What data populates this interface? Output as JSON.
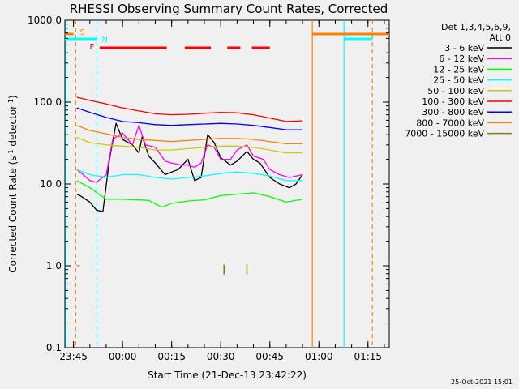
{
  "chart_data": {
    "type": "line",
    "title": "RHESSI Observing Summary Count Rates, Corrected",
    "xlabel": "Start Time (21-Dec-13 23:42:22)",
    "ylabel": "Corrected Count Rate (s⁻¹ detector⁻¹)",
    "ylabel_main": "Corrected Count Rate (s",
    "ylabel_sup1": "-1",
    "ylabel_mid": " detector",
    "ylabel_sup2": "-1",
    "ylabel_end": ")",
    "y_scale": "log",
    "ylim": [
      0.1,
      1000
    ],
    "xlim": [
      "23:42:22",
      "01:21:30"
    ],
    "x_ticks": [
      "23:45",
      "00:00",
      "00:15",
      "00:30",
      "00:45",
      "01:00",
      "01:15"
    ],
    "y_ticks": [
      "0.1",
      "1.0",
      "10.0",
      "100.0",
      "1000.0"
    ],
    "legend_header": [
      "Det 1,3,4,5,6,9,",
      "Att 0"
    ],
    "legend_placement": "right",
    "series": [
      {
        "name": "3 - 6 keV",
        "color": "#000000",
        "x": [
          "23:46",
          "23:47",
          "23:50",
          "23:52",
          "23:54",
          "23:56",
          "23:58",
          "00:00",
          "00:03",
          "00:05",
          "00:06",
          "00:08",
          "00:10",
          "00:13",
          "00:15",
          "00:17",
          "00:20",
          "00:22",
          "00:24",
          "00:26",
          "00:28",
          "00:30",
          "00:33",
          "00:35",
          "00:38",
          "00:40",
          "00:42",
          "00:45",
          "00:48",
          "00:51",
          "00:53",
          "00:55"
        ],
        "y": [
          7.5,
          7.2,
          6.0,
          4.8,
          4.6,
          20,
          55,
          35,
          30,
          24,
          38,
          22,
          18,
          13,
          14,
          15,
          20,
          11,
          12,
          40,
          32,
          21,
          17,
          19,
          25,
          20,
          18,
          12,
          10,
          9,
          10,
          13
        ]
      },
      {
        "name": "6 - 12 keV",
        "color": "#ff00ff",
        "x": [
          "23:46",
          "23:48",
          "23:50",
          "23:52",
          "23:55",
          "23:57",
          "00:00",
          "00:03",
          "00:05",
          "00:07",
          "00:10",
          "00:13",
          "00:15",
          "00:18",
          "00:20",
          "00:22",
          "00:24",
          "00:26",
          "00:28",
          "00:30",
          "00:33",
          "00:35",
          "00:38",
          "00:40",
          "00:43",
          "00:45",
          "00:48",
          "00:51",
          "00:55"
        ],
        "y": [
          15,
          13,
          11,
          10.5,
          13,
          35,
          42,
          30,
          52,
          30,
          28,
          19,
          18,
          17,
          17,
          16,
          18,
          30,
          28,
          20,
          20,
          26,
          30,
          22,
          20,
          15,
          13,
          12,
          13
        ]
      },
      {
        "name": "12 - 25 keV",
        "color": "#00ff00",
        "x": [
          "23:46",
          "23:50",
          "23:55",
          "00:00",
          "00:05",
          "00:08",
          "00:12",
          "00:15",
          "00:20",
          "00:25",
          "00:30",
          "00:35",
          "00:40",
          "00:45",
          "00:50",
          "00:55"
        ],
        "y": [
          11,
          9,
          6.5,
          6.5,
          6.4,
          6.3,
          5.2,
          5.8,
          6.2,
          6.4,
          7.2,
          7.5,
          7.8,
          7.0,
          6.0,
          6.5
        ]
      },
      {
        "name": "25 - 50 keV",
        "color": "#00ffff",
        "x": [
          "23:46",
          "23:50",
          "23:55",
          "00:00",
          "00:05",
          "00:10",
          "00:15",
          "00:20",
          "00:25",
          "00:30",
          "00:35",
          "00:40",
          "00:45",
          "00:50",
          "00:55"
        ],
        "y": [
          15,
          13,
          12,
          13,
          13,
          12,
          11.5,
          12,
          12.5,
          13.5,
          14,
          13.5,
          12.5,
          11,
          11
        ]
      },
      {
        "name": "50 - 100 keV",
        "color": "#cccc00",
        "x": [
          "23:46",
          "23:50",
          "23:55",
          "00:00",
          "00:05",
          "00:10",
          "00:15",
          "00:20",
          "00:25",
          "00:30",
          "00:35",
          "00:40",
          "00:45",
          "00:50",
          "00:55"
        ],
        "y": [
          37,
          32,
          30,
          29,
          28,
          26,
          26,
          27,
          28,
          29,
          29,
          28,
          26,
          24,
          24
        ]
      },
      {
        "name": "100 - 300 keV",
        "color": "#ff0000",
        "x": [
          "23:46",
          "23:50",
          "23:55",
          "00:00",
          "00:05",
          "00:10",
          "00:15",
          "00:20",
          "00:25",
          "00:30",
          "00:35",
          "00:40",
          "00:45",
          "00:50",
          "00:55"
        ],
        "y": [
          115,
          105,
          95,
          85,
          78,
          72,
          70,
          71,
          73,
          75,
          74,
          70,
          64,
          58,
          59
        ]
      },
      {
        "name": "300 - 800 keV",
        "color": "#0000ff",
        "x": [
          "23:46",
          "23:50",
          "23:55",
          "00:00",
          "00:05",
          "00:10",
          "00:15",
          "00:20",
          "00:25",
          "00:30",
          "00:35",
          "00:40",
          "00:45",
          "00:50",
          "00:55"
        ],
        "y": [
          85,
          75,
          65,
          58,
          56,
          53,
          52,
          53,
          54,
          55,
          54,
          52,
          49,
          46,
          46
        ]
      },
      {
        "name": "800 - 7000 keV",
        "color": "#ff8000",
        "x": [
          "23:46",
          "23:50",
          "23:55",
          "00:00",
          "00:05",
          "00:10",
          "00:15",
          "00:20",
          "00:25",
          "00:30",
          "00:35",
          "00:40",
          "00:45",
          "00:50",
          "00:55"
        ],
        "y": [
          52,
          45,
          41,
          37,
          35,
          34,
          33,
          34,
          35,
          36,
          36,
          35,
          33,
          31,
          31
        ]
      },
      {
        "name": "7000 - 15000 keV",
        "color": "#808000",
        "x": [
          "23:46",
          "23:47",
          "00:31",
          "00:38"
        ],
        "y": [
          1.0,
          1.0,
          0.9,
          0.9
        ]
      }
    ],
    "attenuator_markers": [
      {
        "label": "S",
        "color": "#ff8000"
      },
      {
        "label": "N",
        "color": "#00ffff"
      },
      {
        "label": "F",
        "color": "#ff0000"
      }
    ],
    "footer_stamp": "25-Oct-2021 15:01"
  }
}
